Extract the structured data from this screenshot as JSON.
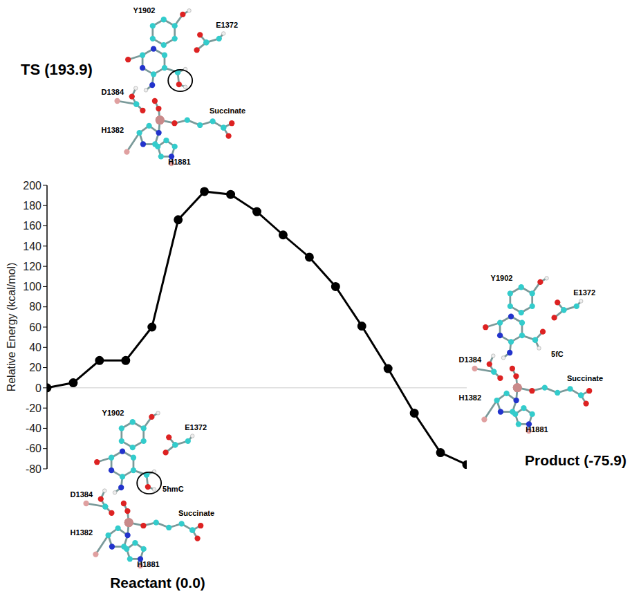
{
  "chart_data": {
    "type": "line",
    "x": [
      0,
      1,
      2,
      3,
      4,
      5,
      6,
      7,
      8,
      9,
      10,
      11,
      12,
      13,
      14,
      15,
      16
    ],
    "xlim": [
      0,
      16
    ],
    "values": [
      0.0,
      5,
      27,
      27,
      60,
      166,
      193.9,
      191,
      174,
      151,
      129,
      100,
      61,
      19,
      -25,
      -64,
      -75.9
    ],
    "ylim": [
      -80,
      200
    ],
    "yticks": [
      -80,
      -60,
      -40,
      -20,
      0,
      20,
      40,
      60,
      80,
      100,
      120,
      140,
      160,
      180,
      200
    ],
    "y_label": "Relative Energy (kcal/mol)",
    "color": "#000000",
    "marker": "circle",
    "line_style": "solid",
    "grid": false,
    "tick_labels": "y",
    "annotations": [
      {
        "text": "TS (193.9)"
      },
      {
        "text": "Reactant (0.0)"
      },
      {
        "text": "Product (-75.9)"
      }
    ],
    "structures": [
      {
        "state": "TS (193.9)",
        "labels": [
          "Y1902",
          "E1372",
          "D1384",
          "H1382",
          "H1881",
          "Succinate"
        ]
      },
      {
        "state": "Reactant (0.0)",
        "labels": [
          "Y1902",
          "E1372",
          "5hmC",
          "D1384",
          "Succinate",
          "H1382",
          "H1881"
        ]
      },
      {
        "state": "Product (-75.9)",
        "labels": [
          "Y1902",
          "E1372",
          "5fC",
          "D1384",
          "Succinate",
          "H1382",
          "H1881"
        ]
      }
    ]
  }
}
